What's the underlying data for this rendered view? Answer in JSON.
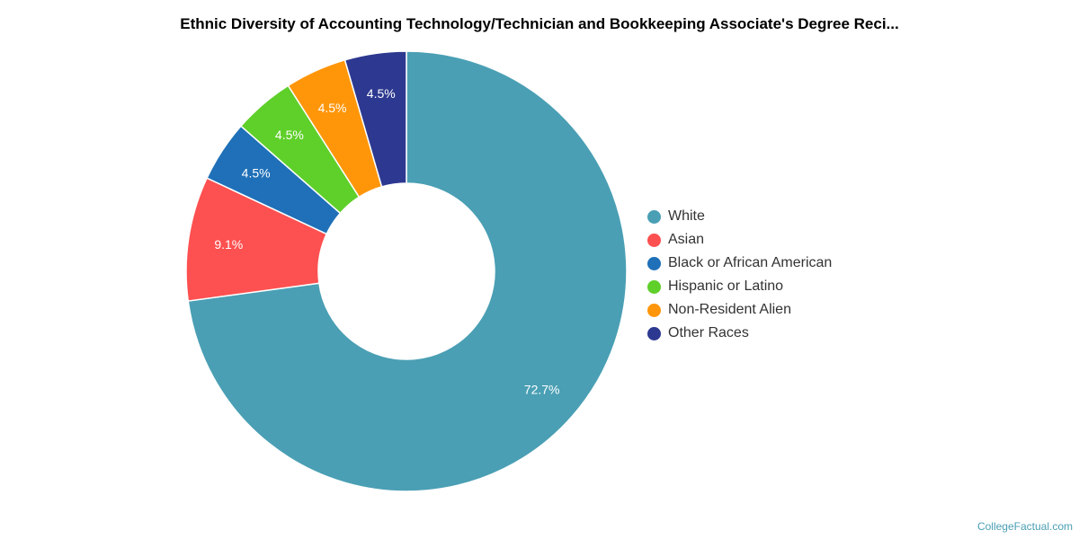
{
  "chart_data": {
    "type": "pie",
    "donut": true,
    "title": "Ethnic Diversity of Accounting Technology/Technician and Bookkeeping Associate's Degree Reci...",
    "slices": [
      {
        "label": "White",
        "value": 72.7,
        "display": "72.7%",
        "color": "#4a9fb4"
      },
      {
        "label": "Asian",
        "value": 9.1,
        "display": "9.1%",
        "color": "#fd5050"
      },
      {
        "label": "Black or African American",
        "value": 4.5,
        "display": "4.5%",
        "color": "#1f70b8"
      },
      {
        "label": "Hispanic or Latino",
        "value": 4.5,
        "display": "4.5%",
        "color": "#5fcf2a"
      },
      {
        "label": "Non-Resident Alien",
        "value": 4.5,
        "display": "4.5%",
        "color": "#ff960a"
      },
      {
        "label": "Other Races",
        "value": 4.5,
        "display": "4.5%",
        "color": "#2d3990"
      }
    ],
    "legend_position": "right"
  },
  "credit": "CollegeFactual.com"
}
